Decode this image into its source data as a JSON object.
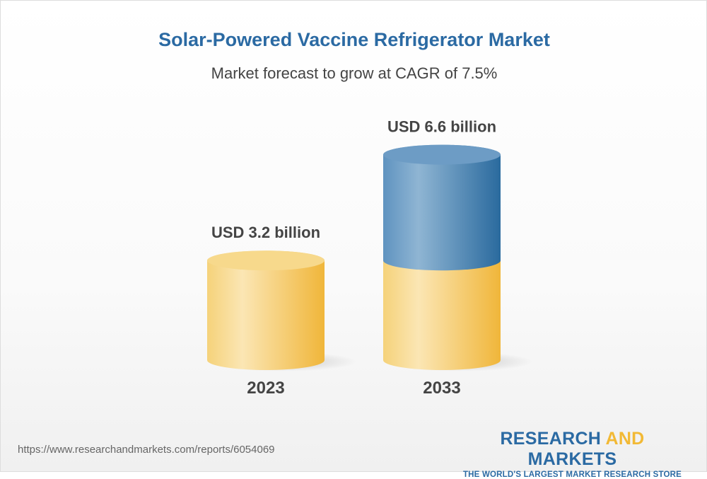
{
  "title": "Solar-Powered Vaccine Refrigerator Market",
  "subtitle": "Market forecast to grow at CAGR of 7.5%",
  "chart_data": {
    "type": "bar",
    "style": "3d-cylinder",
    "categories": [
      "2023",
      "2033"
    ],
    "values": [
      3.2,
      6.6
    ],
    "data_labels": [
      "USD 3.2 billion",
      "USD 6.6 billion"
    ],
    "unit": "USD billion",
    "colors": {
      "base": "#f2b935",
      "growth": "#2b6aa3"
    },
    "grid": false
  },
  "footer": {
    "url": "https://www.researchandmarkets.com/reports/6054069"
  },
  "logo": {
    "part1": "RESEARCH ",
    "part2": "AND",
    "part3": " MARKETS",
    "tagline": "THE WORLD'S LARGEST MARKET RESEARCH STORE"
  }
}
